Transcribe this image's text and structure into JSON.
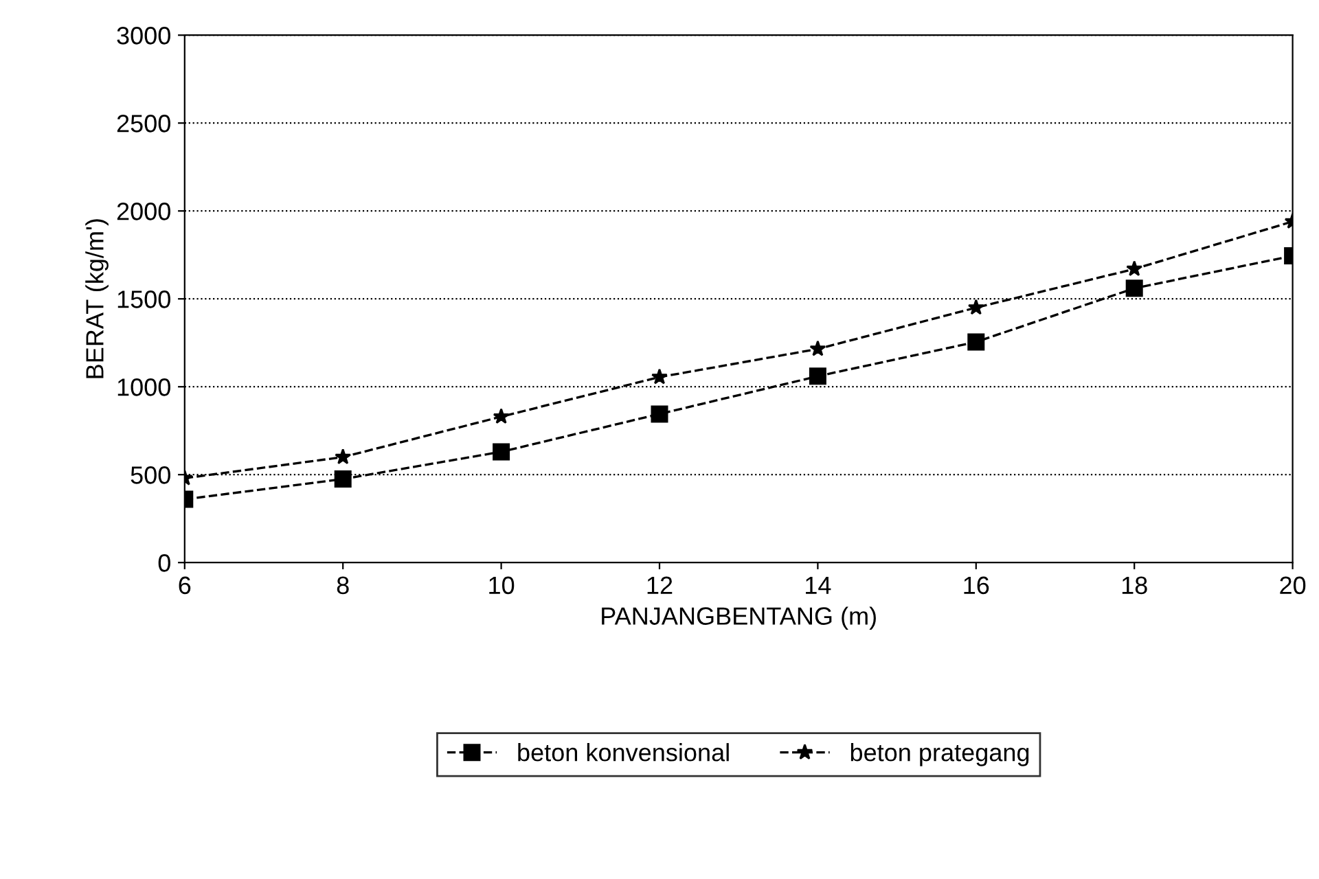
{
  "chart_data": {
    "type": "line",
    "xlabel": "PANJANGBENTANG (m)",
    "ylabel": "BERAT (kg/m')",
    "x": [
      6,
      8,
      10,
      12,
      14,
      16,
      18,
      20
    ],
    "series": [
      {
        "name": "beton konvensional",
        "color": "#000000",
        "marker": "square",
        "values": [
          360,
          475,
          630,
          845,
          1060,
          1255,
          1560,
          1745
        ]
      },
      {
        "name": "beton prategang",
        "color": "#000000",
        "marker": "star",
        "values": [
          480,
          600,
          830,
          1055,
          1215,
          1450,
          1670,
          1940
        ]
      }
    ],
    "xlim": [
      6,
      20
    ],
    "xticks": [
      6,
      8,
      10,
      12,
      14,
      16,
      18,
      20
    ],
    "ylim": [
      0,
      3000
    ],
    "yticks": [
      0,
      500,
      1000,
      1500,
      2000,
      2500,
      3000
    ],
    "grid": "y",
    "legend": "bottom",
    "line_style": "dashed"
  }
}
